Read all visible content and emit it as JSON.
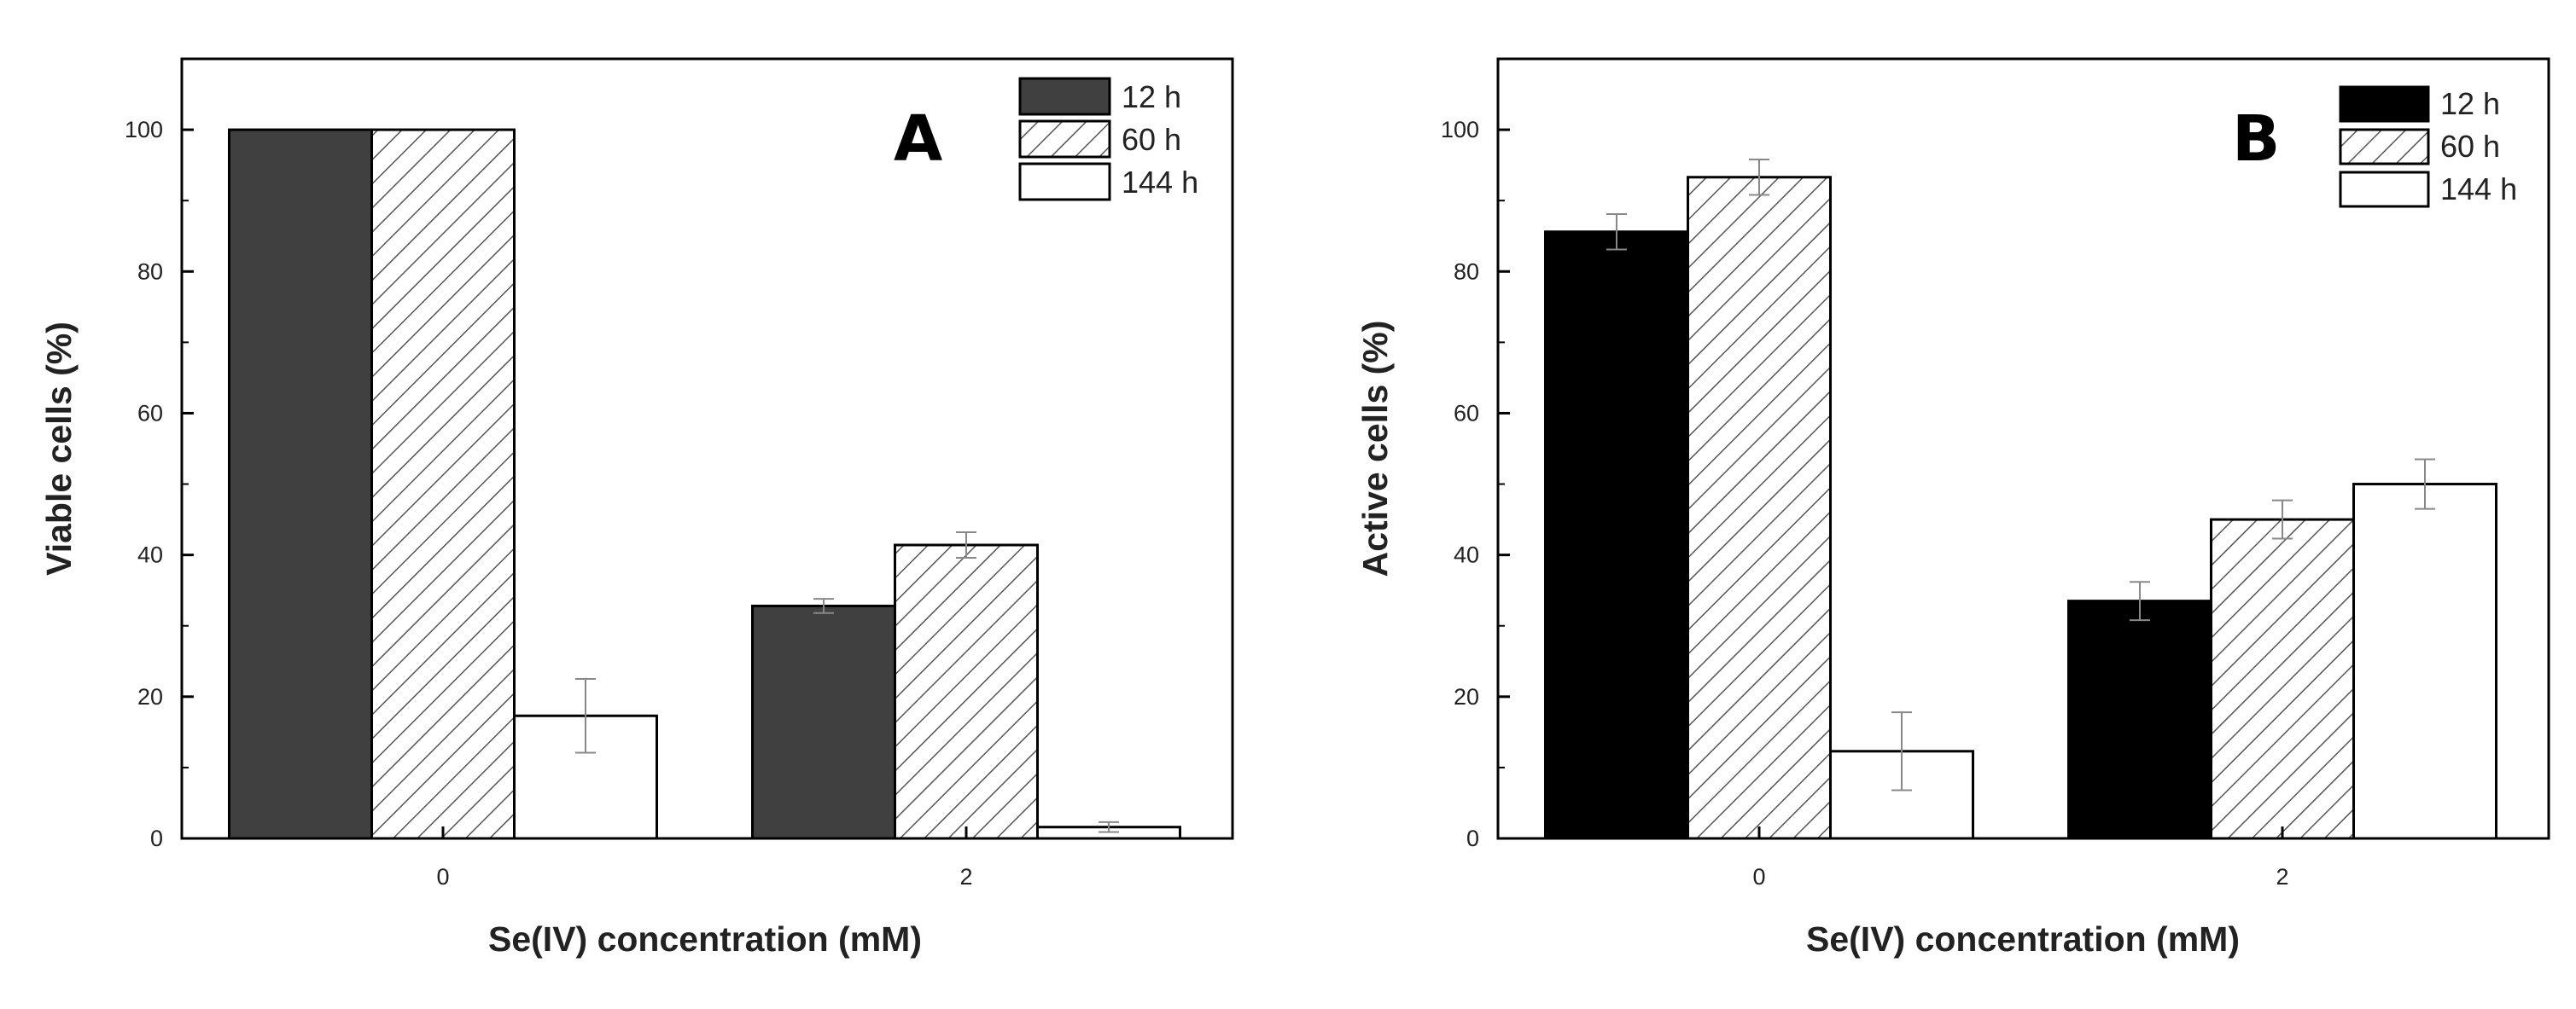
{
  "chart_data": [
    {
      "type": "bar",
      "panel_label": "A",
      "categories": [
        "0",
        "2"
      ],
      "series": [
        {
          "name": "12 h",
          "fill": "#404040",
          "pattern": "solid",
          "values": [
            100,
            32.8
          ],
          "errors": [
            0,
            1.0
          ]
        },
        {
          "name": "60 h",
          "fill": "#ffffff",
          "pattern": "hatch",
          "values": [
            100,
            41.4
          ],
          "errors": [
            0,
            1.8
          ]
        },
        {
          "name": "144 h",
          "fill": "#ffffff",
          "pattern": "solid",
          "values": [
            17.3,
            1.6
          ],
          "errors": [
            5.2,
            0.7
          ]
        }
      ],
      "xlabel": "Se(IV) concentration (mM)",
      "ylabel": "Viable cells (%)",
      "ylim": [
        0,
        110
      ],
      "yticks": [
        "0",
        "20",
        "40",
        "60",
        "80",
        "100"
      ],
      "legend_position": "top-right"
    },
    {
      "type": "bar",
      "panel_label": "B",
      "categories": [
        "0",
        "2"
      ],
      "series": [
        {
          "name": "12 h",
          "fill": "#000000",
          "pattern": "solid",
          "values": [
            85.6,
            33.5
          ],
          "errors": [
            2.5,
            2.7
          ]
        },
        {
          "name": "60 h",
          "fill": "#ffffff",
          "pattern": "hatch",
          "values": [
            93.3,
            45.0
          ],
          "errors": [
            2.5,
            2.7
          ]
        },
        {
          "name": "144 h",
          "fill": "#ffffff",
          "pattern": "solid",
          "values": [
            12.3,
            50.0
          ],
          "errors": [
            5.5,
            3.5
          ]
        }
      ],
      "xlabel": "Se(IV) concentration (mM)",
      "ylabel": "Active cells (%)",
      "ylim": [
        0,
        110
      ],
      "yticks": [
        "0",
        "20",
        "40",
        "60",
        "80",
        "100"
      ],
      "legend_position": "top-right"
    }
  ]
}
